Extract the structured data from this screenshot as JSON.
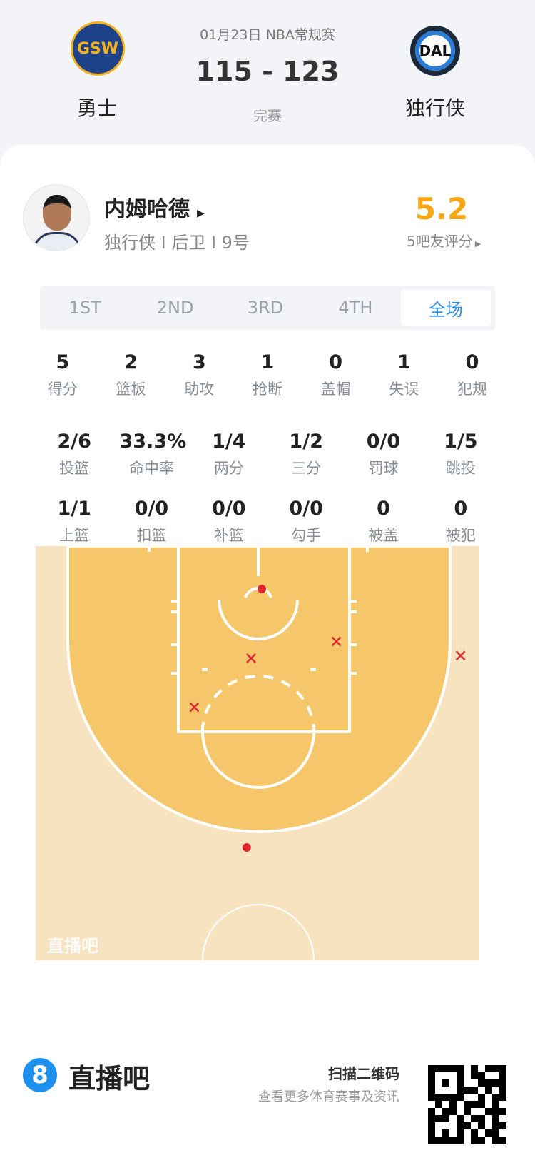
{
  "match": {
    "date_league": "01月23日 NBA常规赛",
    "score": "115 - 123",
    "status": "完赛",
    "home": {
      "name": "勇士",
      "logo_text": "GSW"
    },
    "away": {
      "name": "独行侠",
      "logo_text": "DAL"
    }
  },
  "player": {
    "name": "内姆哈德",
    "info": "独行侠 I 后卫 I 9号",
    "rating": "5.2",
    "rating_label": "5吧友评分"
  },
  "tabs": [
    {
      "label": "1ST"
    },
    {
      "label": "2ND"
    },
    {
      "label": "3RD"
    },
    {
      "label": "4TH"
    },
    {
      "label": "全场",
      "active": true
    }
  ],
  "stats_row1": [
    {
      "v": "5",
      "l": "得分"
    },
    {
      "v": "2",
      "l": "篮板"
    },
    {
      "v": "3",
      "l": "助攻"
    },
    {
      "v": "1",
      "l": "抢断"
    },
    {
      "v": "0",
      "l": "盖帽"
    },
    {
      "v": "1",
      "l": "失误"
    },
    {
      "v": "0",
      "l": "犯规"
    }
  ],
  "stats_row2": [
    {
      "v": "2/6",
      "l": "投篮"
    },
    {
      "v": "33.3%",
      "l": "命中率"
    },
    {
      "v": "1/4",
      "l": "两分"
    },
    {
      "v": "1/2",
      "l": "三分"
    },
    {
      "v": "0/0",
      "l": "罚球"
    },
    {
      "v": "1/5",
      "l": "跳投"
    }
  ],
  "stats_row3": [
    {
      "v": "1/1",
      "l": "上篮"
    },
    {
      "v": "0/0",
      "l": "扣篮"
    },
    {
      "v": "0/0",
      "l": "补篮"
    },
    {
      "v": "0/0",
      "l": "勾手"
    },
    {
      "v": "0",
      "l": "被盖"
    },
    {
      "v": "0",
      "l": "被犯"
    }
  ],
  "shot_chart": {
    "watermark": "直播吧",
    "colors": {
      "made": "#e0262f",
      "missed": "#e0262f",
      "paint": "#f5c76a",
      "floor": "#f8e3c0"
    },
    "shots_ft_from_basket": [
      {
        "result": "made",
        "x": 0.4,
        "y": 0
      },
      {
        "result": "made",
        "x": -1.3,
        "y": 29.1
      },
      {
        "result": "missed",
        "x": 8.8,
        "y": 5.9
      },
      {
        "result": "missed",
        "x": -0.8,
        "y": 7.8
      },
      {
        "result": "missed",
        "x": -7.2,
        "y": 13.3
      },
      {
        "result": "missed",
        "x": 22.8,
        "y": 7.5
      }
    ]
  },
  "footer": {
    "brand": "直播吧",
    "brand_icon": "8",
    "scan": "扫描二维码",
    "sub": "查看更多体育赛事及资讯"
  },
  "accent": "#2a8be8",
  "rating_color": "#f5a614"
}
